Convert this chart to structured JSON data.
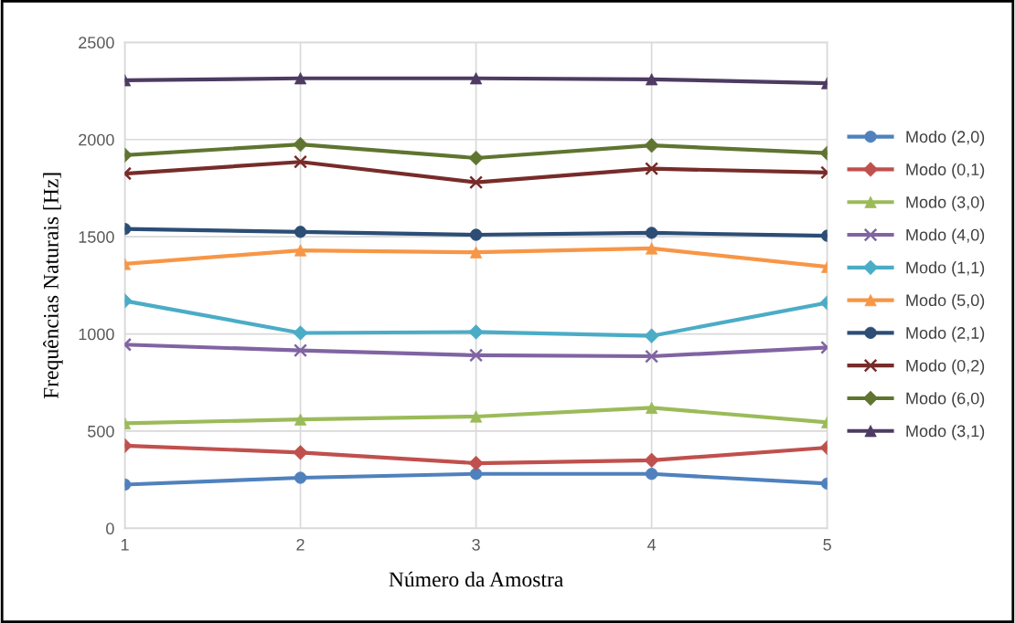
{
  "chart_data": {
    "type": "line",
    "xlabel": "Número da Amostra",
    "ylabel": "Frequências Naturais [Hz]",
    "x": [
      1,
      2,
      3,
      4,
      5
    ],
    "xlim": [
      1,
      5
    ],
    "xticks": [
      1,
      2,
      3,
      4,
      5
    ],
    "ylim": [
      0,
      2500
    ],
    "yticks": [
      0,
      500,
      1000,
      1500,
      2000,
      2500
    ],
    "grid": true,
    "legend": "right",
    "series": [
      {
        "name": "Modo (2,0)",
        "color": "#4f81bd",
        "marker": "circle",
        "values": [
          225,
          260,
          280,
          280,
          230
        ]
      },
      {
        "name": "Modo (0,1)",
        "color": "#c0504d",
        "marker": "diamond",
        "values": [
          425,
          390,
          335,
          350,
          415
        ]
      },
      {
        "name": "Modo (3,0)",
        "color": "#9bbb59",
        "marker": "triangle",
        "values": [
          540,
          560,
          575,
          620,
          545
        ]
      },
      {
        "name": "Modo (4,0)",
        "color": "#8064a2",
        "marker": "cross",
        "values": [
          945,
          915,
          890,
          885,
          930
        ]
      },
      {
        "name": "Modo (1,1)",
        "color": "#4bacc6",
        "marker": "diamond",
        "values": [
          1170,
          1005,
          1010,
          990,
          1160
        ]
      },
      {
        "name": "Modo (5,0)",
        "color": "#f79646",
        "marker": "triangle",
        "values": [
          1360,
          1430,
          1420,
          1440,
          1345
        ]
      },
      {
        "name": "Modo (2,1)",
        "color": "#2c4d75",
        "marker": "circle",
        "values": [
          1540,
          1525,
          1510,
          1520,
          1505
        ]
      },
      {
        "name": "Modo (0,2)",
        "color": "#772c2a",
        "marker": "cross",
        "values": [
          1825,
          1885,
          1780,
          1850,
          1830
        ]
      },
      {
        "name": "Modo (6,0)",
        "color": "#5f7530",
        "marker": "diamond",
        "values": [
          1920,
          1975,
          1905,
          1970,
          1930
        ]
      },
      {
        "name": "Modo (3,1)",
        "color": "#4d3b62",
        "marker": "triangle",
        "values": [
          2305,
          2315,
          2315,
          2310,
          2290
        ]
      }
    ]
  }
}
